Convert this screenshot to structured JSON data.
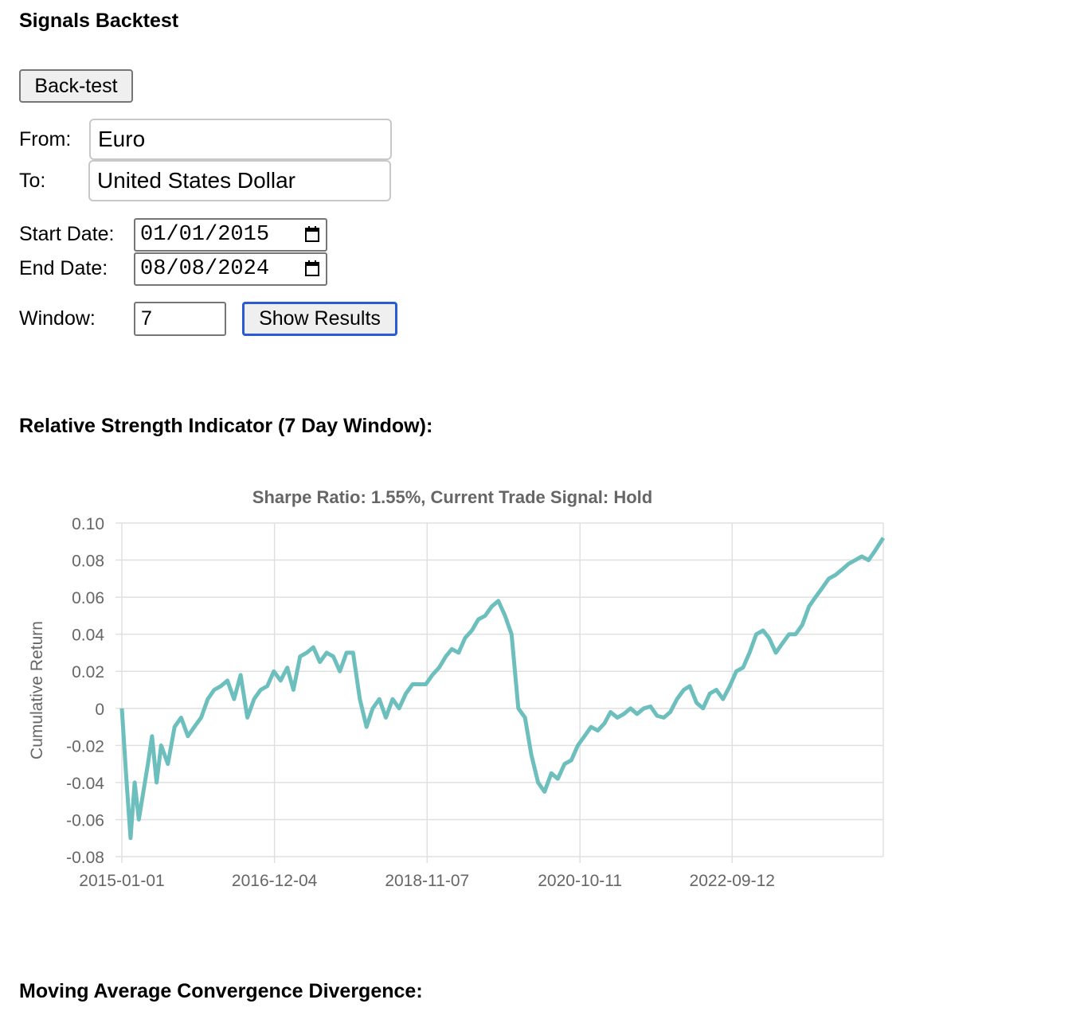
{
  "page": {
    "title": "Signals Backtest"
  },
  "controls": {
    "backtest_button": "Back-test",
    "from_label": "From:",
    "from_value": "Euro",
    "to_label": "To:",
    "to_value": "United States Dollar",
    "start_date_label": "Start Date:",
    "start_date_value": "01/01/2015",
    "end_date_label": "End Date:",
    "end_date_value": "08/08/2024",
    "window_label": "Window:",
    "window_value": "7",
    "show_results_button": "Show Results"
  },
  "sections": {
    "rsi_heading": "Relative Strength Indicator (7 Day Window):",
    "macd_heading": "Moving Average Convergence Divergence:"
  },
  "chart_data": {
    "type": "line",
    "title": "Sharpe Ratio: 1.55%, Current Trade Signal: Hold",
    "xlabel": "",
    "ylabel": "Cumulative Return",
    "x_tick_labels": [
      "2015-01-01",
      "2016-12-04",
      "2018-11-07",
      "2020-10-11",
      "2022-09-12"
    ],
    "y_tick_labels": [
      "0.10",
      "0.08",
      "0.06",
      "0.04",
      "0.02",
      "0",
      "-0.02",
      "-0.04",
      "-0.06",
      "-0.08"
    ],
    "ylim": [
      -0.08,
      0.1
    ],
    "xlim": [
      "2015-01-01",
      "2024-08-08"
    ],
    "grid": true,
    "legend": "none",
    "color": "#6cbfbd",
    "series": [
      {
        "x": [
          "2015-01-01",
          "2015-01-20",
          "2015-02-10",
          "2015-03-01",
          "2015-03-20",
          "2015-04-10",
          "2015-05-01",
          "2015-05-20",
          "2015-06-10",
          "2015-07-01",
          "2015-08-01",
          "2015-09-01",
          "2015-10-01",
          "2015-11-01",
          "2015-12-01",
          "2016-01-01",
          "2016-02-01",
          "2016-03-01",
          "2016-04-01",
          "2016-05-01",
          "2016-06-01",
          "2016-07-01",
          "2016-08-01",
          "2016-09-01",
          "2016-10-01",
          "2016-11-01",
          "2016-12-01",
          "2017-01-01",
          "2017-02-01",
          "2017-03-01",
          "2017-04-01",
          "2017-05-01",
          "2017-06-01",
          "2017-07-01",
          "2017-08-01",
          "2017-09-01",
          "2017-10-01",
          "2017-11-01",
          "2017-12-01",
          "2018-01-01",
          "2018-02-01",
          "2018-03-01",
          "2018-04-01",
          "2018-05-01",
          "2018-06-01",
          "2018-07-01",
          "2018-08-01",
          "2018-09-01",
          "2018-10-01",
          "2018-11-01",
          "2018-12-01",
          "2019-01-01",
          "2019-02-01",
          "2019-03-01",
          "2019-04-01",
          "2019-05-01",
          "2019-06-01",
          "2019-07-01",
          "2019-08-01",
          "2019-09-01",
          "2019-10-01",
          "2019-11-01",
          "2019-12-01",
          "2020-01-01",
          "2020-02-01",
          "2020-03-01",
          "2020-04-01",
          "2020-05-01",
          "2020-06-01",
          "2020-07-01",
          "2020-08-01",
          "2020-09-01",
          "2020-10-01",
          "2020-11-01",
          "2020-12-01",
          "2021-01-01",
          "2021-02-01",
          "2021-03-01",
          "2021-04-01",
          "2021-05-01",
          "2021-06-01",
          "2021-07-01",
          "2021-08-01",
          "2021-09-01",
          "2021-10-01",
          "2021-11-01",
          "2021-12-01",
          "2022-01-01",
          "2022-02-01",
          "2022-03-01",
          "2022-04-01",
          "2022-05-01",
          "2022-06-01",
          "2022-07-01",
          "2022-08-01",
          "2022-09-01",
          "2022-10-01",
          "2022-11-01",
          "2022-12-01",
          "2023-01-01",
          "2023-02-01",
          "2023-03-01",
          "2023-04-01",
          "2023-05-01",
          "2023-06-01",
          "2023-07-01",
          "2023-08-01",
          "2023-09-01",
          "2023-10-01",
          "2023-11-01",
          "2023-12-01",
          "2024-01-01",
          "2024-02-01",
          "2024-03-01",
          "2024-04-01",
          "2024-05-01",
          "2024-06-01",
          "2024-07-01",
          "2024-08-08"
        ],
        "values": [
          0.0,
          -0.035,
          -0.07,
          -0.04,
          -0.06,
          -0.045,
          -0.03,
          -0.015,
          -0.04,
          -0.02,
          -0.03,
          -0.01,
          -0.005,
          -0.015,
          -0.01,
          -0.005,
          0.005,
          0.01,
          0.012,
          0.015,
          0.005,
          0.018,
          -0.005,
          0.005,
          0.01,
          0.012,
          0.02,
          0.015,
          0.022,
          0.01,
          0.028,
          0.03,
          0.033,
          0.025,
          0.03,
          0.028,
          0.02,
          0.03,
          0.03,
          0.005,
          -0.01,
          0.0,
          0.005,
          -0.005,
          0.005,
          0.0,
          0.008,
          0.013,
          0.013,
          0.013,
          0.018,
          0.022,
          0.028,
          0.032,
          0.03,
          0.038,
          0.042,
          0.048,
          0.05,
          0.055,
          0.058,
          0.05,
          0.04,
          0.0,
          -0.005,
          -0.025,
          -0.04,
          -0.045,
          -0.035,
          -0.038,
          -0.03,
          -0.028,
          -0.02,
          -0.015,
          -0.01,
          -0.012,
          -0.008,
          -0.002,
          -0.005,
          -0.003,
          0.0,
          -0.003,
          0.0,
          0.001,
          -0.004,
          -0.005,
          -0.002,
          0.005,
          0.01,
          0.012,
          0.003,
          0.0,
          0.008,
          0.01,
          0.005,
          0.012,
          0.02,
          0.022,
          0.03,
          0.04,
          0.042,
          0.038,
          0.03,
          0.035,
          0.04,
          0.04,
          0.045,
          0.055,
          0.06,
          0.065,
          0.07,
          0.072,
          0.075,
          0.078,
          0.08,
          0.082,
          0.08,
          0.085,
          0.092
        ]
      }
    ]
  }
}
